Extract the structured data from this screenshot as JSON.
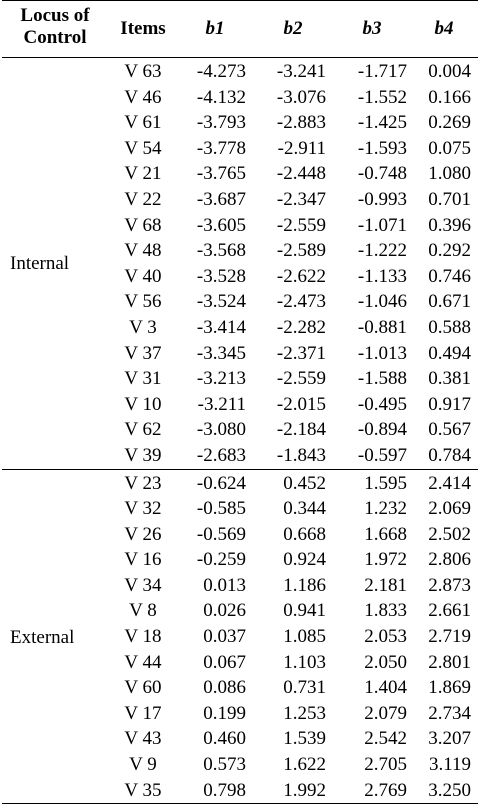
{
  "headers": {
    "locus": "Locus of\nControl",
    "items": "Items",
    "b1": "b1",
    "b2": "b2",
    "b3": "b3",
    "b4": "b4"
  },
  "groups": [
    {
      "label": "Internal",
      "rows": [
        {
          "item": "V 63",
          "b1": "-4.273",
          "b2": "-3.241",
          "b3": "-1.717",
          "b4": "0.004"
        },
        {
          "item": "V 46",
          "b1": "-4.132",
          "b2": "-3.076",
          "b3": "-1.552",
          "b4": "0.166"
        },
        {
          "item": "V 61",
          "b1": "-3.793",
          "b2": "-2.883",
          "b3": "-1.425",
          "b4": "0.269"
        },
        {
          "item": "V 54",
          "b1": "-3.778",
          "b2": "-2.911",
          "b3": "-1.593",
          "b4": "0.075"
        },
        {
          "item": "V 21",
          "b1": "-3.765",
          "b2": "-2.448",
          "b3": "-0.748",
          "b4": "1.080"
        },
        {
          "item": "V 22",
          "b1": "-3.687",
          "b2": "-2.347",
          "b3": "-0.993",
          "b4": "0.701"
        },
        {
          "item": "V 68",
          "b1": "-3.605",
          "b2": "-2.559",
          "b3": "-1.071",
          "b4": "0.396"
        },
        {
          "item": "V 48",
          "b1": "-3.568",
          "b2": "-2.589",
          "b3": "-1.222",
          "b4": "0.292"
        },
        {
          "item": "V 40",
          "b1": "-3.528",
          "b2": "-2.622",
          "b3": "-1.133",
          "b4": "0.746"
        },
        {
          "item": "V 56",
          "b1": "-3.524",
          "b2": "-2.473",
          "b3": "-1.046",
          "b4": "0.671"
        },
        {
          "item": "V 3",
          "b1": "-3.414",
          "b2": "-2.282",
          "b3": "-0.881",
          "b4": "0.588"
        },
        {
          "item": "V 37",
          "b1": "-3.345",
          "b2": "-2.371",
          "b3": "-1.013",
          "b4": "0.494"
        },
        {
          "item": "V 31",
          "b1": "-3.213",
          "b2": "-2.559",
          "b3": "-1.588",
          "b4": "0.381"
        },
        {
          "item": "V 10",
          "b1": "-3.211",
          "b2": "-2.015",
          "b3": "-0.495",
          "b4": "0.917"
        },
        {
          "item": "V 62",
          "b1": "-3.080",
          "b2": "-2.184",
          "b3": "-0.894",
          "b4": "0.567"
        },
        {
          "item": "V 39",
          "b1": "-2.683",
          "b2": "-1.843",
          "b3": "-0.597",
          "b4": "0.784"
        }
      ]
    },
    {
      "label": "External",
      "rows": [
        {
          "item": "V 23",
          "b1": "-0.624",
          "b2": "0.452",
          "b3": "1.595",
          "b4": "2.414"
        },
        {
          "item": "V 32",
          "b1": "-0.585",
          "b2": "0.344",
          "b3": "1.232",
          "b4": "2.069"
        },
        {
          "item": "V 26",
          "b1": "-0.569",
          "b2": "0.668",
          "b3": "1.668",
          "b4": "2.502"
        },
        {
          "item": "V 16",
          "b1": "-0.259",
          "b2": "0.924",
          "b3": "1.972",
          "b4": "2.806"
        },
        {
          "item": "V 34",
          "b1": "0.013",
          "b2": "1.186",
          "b3": "2.181",
          "b4": "2.873"
        },
        {
          "item": "V 8",
          "b1": "0.026",
          "b2": "0.941",
          "b3": "1.833",
          "b4": "2.661"
        },
        {
          "item": "V 18",
          "b1": "0.037",
          "b2": "1.085",
          "b3": "2.053",
          "b4": "2.719"
        },
        {
          "item": "V 44",
          "b1": "0.067",
          "b2": "1.103",
          "b3": "2.050",
          "b4": "2.801"
        },
        {
          "item": "V 60",
          "b1": "0.086",
          "b2": "0.731",
          "b3": "1.404",
          "b4": "1.869"
        },
        {
          "item": "V 17",
          "b1": "0.199",
          "b2": "1.253",
          "b3": "2.079",
          "b4": "2.734"
        },
        {
          "item": "V 43",
          "b1": "0.460",
          "b2": "1.539",
          "b3": "2.542",
          "b4": "3.207"
        },
        {
          "item": "V 9",
          "b1": "0.573",
          "b2": "1.622",
          "b3": "2.705",
          "b4": "3.119"
        },
        {
          "item": "V 35",
          "b1": "0.798",
          "b2": "1.992",
          "b3": "2.769",
          "b4": "3.250"
        }
      ]
    }
  ]
}
